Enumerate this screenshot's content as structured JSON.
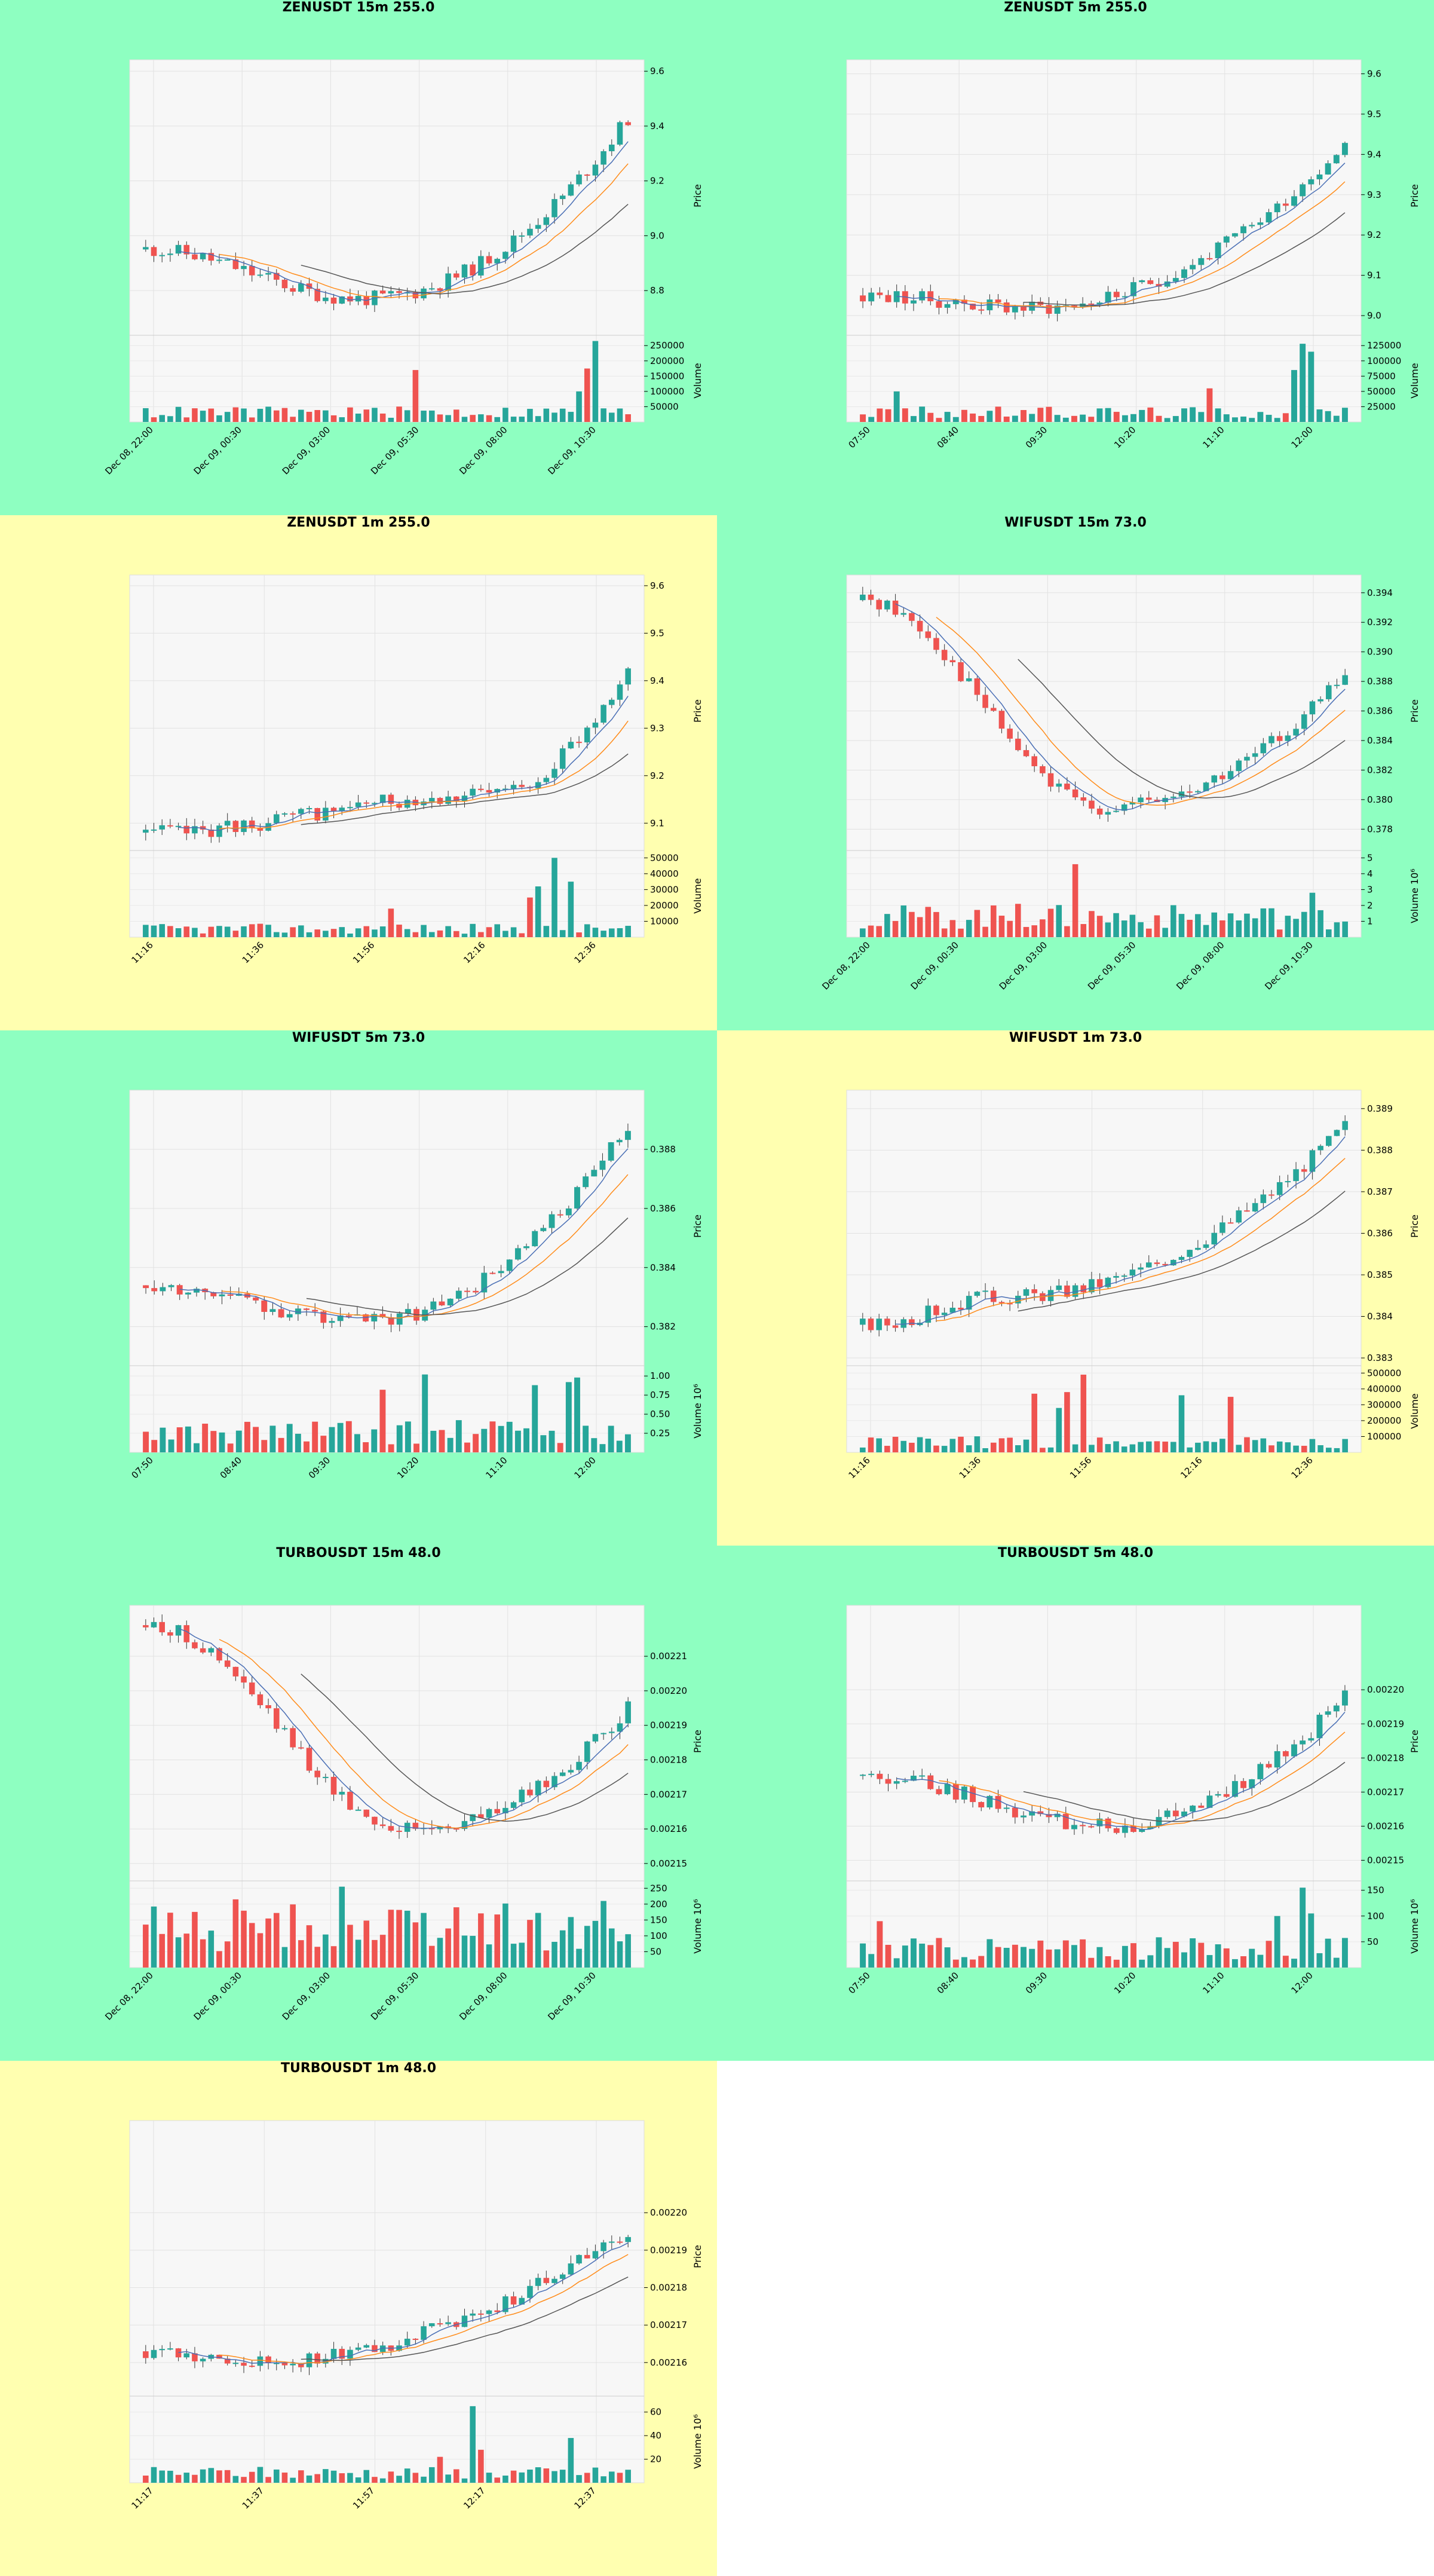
{
  "colors": {
    "bg_green": "#8effc1",
    "bg_yellow": "#ffffb0",
    "plot_bg": "#f7f7f7",
    "up": "#26a69a",
    "down": "#ef5350",
    "ma_fast": "#4a6fb5",
    "ma_mid": "#ff8c1a",
    "ma_slow": "#555555"
  },
  "chart_data": [
    {
      "type": "candlestick",
      "title": "ZENUSDT 15m 255.0",
      "background": "green",
      "ylabel": "Price",
      "volume_label": "Volume",
      "price_ticks": [
        "8.8",
        "9.0",
        "9.2",
        "9.4",
        "9.6"
      ],
      "price_range": [
        8.65,
        9.62
      ],
      "volume_ticks": [
        "50000",
        "100000",
        "150000",
        "200000",
        "250000"
      ],
      "volume_max": 270000,
      "x_ticks": [
        "Dec 08, 22:00",
        "Dec 09, 00:30",
        "Dec 09, 03:00",
        "Dec 09, 05:30",
        "Dec 09, 08:00",
        "Dec 09, 10:30"
      ],
      "start": 8.95,
      "end": 9.43,
      "low_point": 8.77,
      "low_frac": 0.45,
      "candles": 60,
      "seed": 11,
      "vol_base": 30000,
      "vol_spikes": [
        [
          55,
          265000
        ],
        [
          54,
          175000
        ],
        [
          53,
          100000
        ],
        [
          33,
          170000
        ]
      ]
    },
    {
      "type": "candlestick",
      "title": "ZENUSDT 5m 255.0",
      "background": "green",
      "ylabel": "Price",
      "volume_label": "Volume",
      "price_ticks": [
        "9.0",
        "9.1",
        "9.2",
        "9.3",
        "9.4",
        "9.5",
        "9.6"
      ],
      "price_range": [
        8.96,
        9.62
      ],
      "volume_ticks": [
        "25000",
        "50000",
        "75000",
        "100000",
        "125000"
      ],
      "volume_max": 135000,
      "x_ticks": [
        "07:50",
        "08:40",
        "09:30",
        "10:20",
        "11:10",
        "12:00"
      ],
      "start": 9.05,
      "end": 9.43,
      "low_point": 9.02,
      "low_frac": 0.35,
      "candles": 58,
      "seed": 23,
      "vol_base": 15000,
      "vol_spikes": [
        [
          52,
          128000
        ],
        [
          53,
          115000
        ],
        [
          51,
          85000
        ],
        [
          41,
          55000
        ],
        [
          4,
          50000
        ]
      ]
    },
    {
      "type": "candlestick",
      "title": "ZENUSDT 1m 255.0",
      "background": "yellow",
      "ylabel": "Price",
      "volume_label": "Volume",
      "price_ticks": [
        "9.1",
        "9.2",
        "9.3",
        "9.4",
        "9.5",
        "9.6"
      ],
      "price_range": [
        9.05,
        9.61
      ],
      "volume_ticks": [
        "10000",
        "20000",
        "30000",
        "40000",
        "50000"
      ],
      "volume_max": 52000,
      "x_ticks": [
        "11:16",
        "11:36",
        "11:56",
        "12:16",
        "12:36"
      ],
      "start": 9.08,
      "end": 9.43,
      "low_point": 9.16,
      "low_frac": 0.7,
      "candles": 60,
      "seed": 37,
      "vol_base": 5000,
      "vol_spikes": [
        [
          50,
          50000
        ],
        [
          48,
          32000
        ],
        [
          52,
          35000
        ],
        [
          47,
          25000
        ],
        [
          30,
          18000
        ]
      ]
    },
    {
      "type": "candlestick",
      "title": "WIFUSDT 15m 73.0",
      "background": "green",
      "ylabel": "Price",
      "volume_label": "Volume  10⁶",
      "price_ticks": [
        "0.378",
        "0.380",
        "0.382",
        "0.384",
        "0.386",
        "0.388",
        "0.390",
        "0.392",
        "0.394"
      ],
      "price_range": [
        0.3768,
        0.3948
      ],
      "volume_ticks": [
        "1",
        "2",
        "3",
        "4",
        "5"
      ],
      "volume_max": 5.2,
      "x_ticks": [
        "Dec 08, 22:00",
        "Dec 09, 00:30",
        "Dec 09, 03:00",
        "Dec 09, 05:30",
        "Dec 09, 08:00",
        "Dec 09, 10:30"
      ],
      "start": 0.3935,
      "end": 0.3885,
      "low_point": 0.3795,
      "low_frac": 0.5,
      "candles": 60,
      "seed": 41,
      "vol_base": 1.2,
      "vol_spikes": [
        [
          26,
          4.6
        ],
        [
          16,
          2.0
        ],
        [
          55,
          2.8
        ],
        [
          19,
          2.1
        ]
      ]
    },
    {
      "type": "candlestick",
      "title": "WIFUSDT 5m 73.0",
      "background": "green",
      "ylabel": "Price",
      "volume_label": "Volume  10⁶",
      "price_ticks": [
        "0.382",
        "0.384",
        "0.386",
        "0.388"
      ],
      "price_range": [
        0.3808,
        0.3898
      ],
      "volume_ticks": [
        "0.25",
        "0.50",
        "0.75",
        "1.00"
      ],
      "volume_max": 1.08,
      "x_ticks": [
        "07:50",
        "08:40",
        "09:30",
        "10:20",
        "11:10",
        "12:00"
      ],
      "start": 0.3834,
      "end": 0.3888,
      "low_point": 0.3822,
      "low_frac": 0.45,
      "candles": 58,
      "seed": 53,
      "vol_base": 0.25,
      "vol_spikes": [
        [
          33,
          1.02
        ],
        [
          51,
          0.98
        ],
        [
          46,
          0.88
        ],
        [
          28,
          0.82
        ],
        [
          50,
          0.92
        ]
      ]
    },
    {
      "type": "candlestick",
      "title": "WIFUSDT 1m 73.0",
      "background": "yellow",
      "ylabel": "Price",
      "volume_label": "Volume",
      "price_ticks": [
        "0.383",
        "0.384",
        "0.385",
        "0.386",
        "0.387",
        "0.388",
        "0.389"
      ],
      "price_range": [
        0.3829,
        0.3893
      ],
      "volume_ticks": [
        "100000",
        "200000",
        "300000",
        "400000",
        "500000"
      ],
      "volume_max": 520000,
      "x_ticks": [
        "11:16",
        "11:36",
        "11:56",
        "12:16",
        "12:36"
      ],
      "start": 0.3838,
      "end": 0.3886,
      "low_point": 0.3845,
      "low_frac": 0.3,
      "candles": 60,
      "seed": 67,
      "vol_base": 60000,
      "vol_spikes": [
        [
          27,
          490000
        ],
        [
          21,
          370000
        ],
        [
          25,
          380000
        ],
        [
          39,
          360000
        ],
        [
          45,
          350000
        ],
        [
          24,
          280000
        ]
      ]
    },
    {
      "type": "candlestick",
      "title": "TURBOUSDT 15m 48.0",
      "background": "green",
      "ylabel": "Price",
      "volume_label": "Volume  10⁶",
      "price_ticks": [
        "0.00215",
        "0.00216",
        "0.00217",
        "0.00218",
        "0.00219",
        "0.00220",
        "0.00221"
      ],
      "price_range": [
        0.002146,
        0.002223
      ],
      "volume_ticks": [
        "50",
        "100",
        "150",
        "200",
        "250"
      ],
      "volume_max": 260,
      "x_ticks": [
        "Dec 08, 22:00",
        "Dec 09, 00:30",
        "Dec 09, 03:00",
        "Dec 09, 05:30",
        "Dec 09, 08:00",
        "Dec 09, 10:30"
      ],
      "start": 0.002219,
      "end": 0.002195,
      "low_point": 0.00216,
      "low_frac": 0.55,
      "candles": 60,
      "seed": 79,
      "vol_base": 120,
      "vol_spikes": [
        [
          24,
          255
        ],
        [
          11,
          215
        ],
        [
          56,
          210
        ],
        [
          38,
          190
        ]
      ]
    },
    {
      "type": "candlestick",
      "title": "TURBOUSDT 5m 48.0",
      "background": "green",
      "ylabel": "Price",
      "volume_label": "Volume  10⁶",
      "price_ticks": [
        "0.00215",
        "0.00216",
        "0.00217",
        "0.00218",
        "0.00219",
        "0.00220"
      ],
      "price_range": [
        0.002145,
        0.002223
      ],
      "volume_ticks": [
        "50",
        "100",
        "150"
      ],
      "volume_max": 160,
      "x_ticks": [
        "07:50",
        "08:40",
        "09:30",
        "10:20",
        "11:10",
        "12:00"
      ],
      "start": 0.002175,
      "end": 0.002198,
      "low_point": 0.00216,
      "low_frac": 0.5,
      "candles": 58,
      "seed": 83,
      "vol_base": 35,
      "vol_spikes": [
        [
          52,
          155
        ],
        [
          53,
          105
        ],
        [
          49,
          100
        ],
        [
          2,
          90
        ]
      ]
    },
    {
      "type": "candlestick",
      "title": "TURBOUSDT 1m 48.0",
      "background": "yellow",
      "ylabel": "Price",
      "volume_label": "Volume  10⁶",
      "price_ticks": [
        "0.00216",
        "0.00217",
        "0.00218",
        "0.00219",
        "0.00220"
      ],
      "price_range": [
        0.002152,
        0.002223
      ],
      "volume_ticks": [
        "20",
        "40",
        "60"
      ],
      "volume_max": 70,
      "x_ticks": [
        "11:17",
        "11:37",
        "11:57",
        "12:17",
        "12:37"
      ],
      "start": 0.002163,
      "end": 0.002195,
      "low_point": 0.00216,
      "low_frac": 0.2,
      "candles": 60,
      "seed": 97,
      "vol_base": 8,
      "vol_spikes": [
        [
          40,
          65
        ],
        [
          52,
          38
        ],
        [
          41,
          28
        ],
        [
          36,
          22
        ]
      ]
    }
  ]
}
